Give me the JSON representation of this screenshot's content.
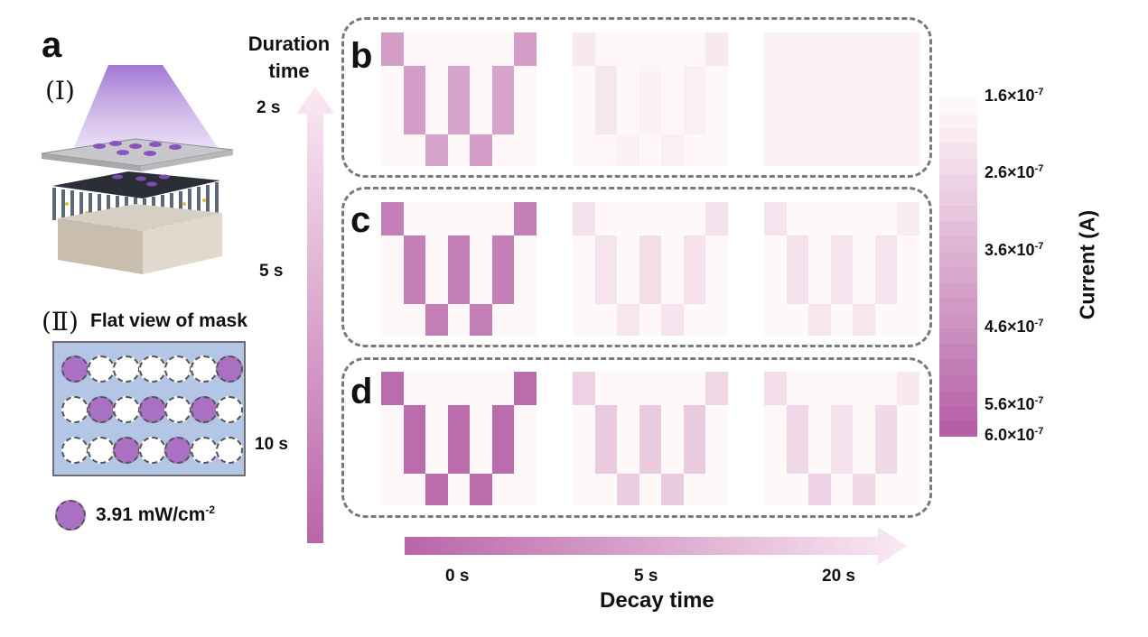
{
  "panel_a": {
    "letter": "a",
    "part1_label": "(Ⅰ)",
    "part2_label": "(Ⅱ)",
    "part2_title": "Flat view of mask",
    "mask_rows": [
      [
        1,
        0,
        0,
        0,
        0,
        0,
        1
      ],
      [
        0,
        1,
        0,
        1,
        0,
        1,
        0
      ],
      [
        0,
        0,
        1,
        0,
        1,
        0,
        0
      ]
    ],
    "legend_value": "3.91 mW/cm",
    "legend_sup": "-2",
    "colors": {
      "mask_bg": "#b4c6e6",
      "lit": "#a970c4",
      "unlit": "#ffffff",
      "light_beam": "#9b6fd0"
    }
  },
  "duration_axis": {
    "title_line1": "Duration",
    "title_line2": "time",
    "ticks": [
      "2 s",
      "5 s",
      "10 s"
    ]
  },
  "decay_axis": {
    "title": "Decay time",
    "ticks": [
      "0 s",
      "5 s",
      "20 s"
    ]
  },
  "rows": [
    {
      "letter": "b",
      "heatmaps": [
        [
          [
            0.6,
            0.0,
            0.0,
            0.0,
            0.0,
            0.0,
            0.6
          ],
          [
            0.0,
            0.6,
            0.0,
            0.55,
            0.0,
            0.55,
            0.0
          ],
          [
            0.0,
            0.0,
            0.55,
            0.0,
            0.6,
            0.0,
            0.0
          ]
        ],
        [
          [
            0.1,
            0.0,
            0.0,
            0.0,
            0.0,
            0.0,
            0.1
          ],
          [
            0.0,
            0.12,
            0.0,
            0.04,
            0.0,
            0.06,
            0.0
          ],
          [
            0.0,
            0.0,
            0.04,
            0.0,
            0.06,
            0.0,
            0.0
          ]
        ],
        [
          [
            0.05,
            0.05,
            0.05,
            0.05,
            0.05,
            0.05,
            0.05
          ],
          [
            0.05,
            0.05,
            0.05,
            0.05,
            0.05,
            0.05,
            0.05
          ],
          [
            0.05,
            0.05,
            0.05,
            0.05,
            0.05,
            0.05,
            0.05
          ]
        ]
      ]
    },
    {
      "letter": "c",
      "heatmaps": [
        [
          [
            0.8,
            0.0,
            0.0,
            0.0,
            0.0,
            0.0,
            0.8
          ],
          [
            0.0,
            0.8,
            0.0,
            0.8,
            0.0,
            0.8,
            0.0
          ],
          [
            0.0,
            0.0,
            0.8,
            0.0,
            0.8,
            0.0,
            0.0
          ]
        ],
        [
          [
            0.15,
            0.0,
            0.0,
            0.0,
            0.0,
            0.0,
            0.15
          ],
          [
            0.0,
            0.14,
            0.0,
            0.18,
            0.0,
            0.15,
            0.0
          ],
          [
            0.0,
            0.0,
            0.12,
            0.0,
            0.14,
            0.0,
            0.0
          ]
        ],
        [
          [
            0.14,
            0.0,
            0.0,
            0.0,
            0.0,
            0.0,
            0.08
          ],
          [
            0.0,
            0.15,
            0.0,
            0.14,
            0.0,
            0.14,
            0.0
          ],
          [
            0.0,
            0.0,
            0.12,
            0.0,
            0.12,
            0.0,
            0.0
          ]
        ]
      ]
    },
    {
      "letter": "d",
      "heatmaps": [
        [
          [
            0.92,
            0.0,
            0.0,
            0.0,
            0.0,
            0.0,
            0.92
          ],
          [
            0.0,
            0.92,
            0.0,
            0.92,
            0.0,
            0.92,
            0.0
          ],
          [
            0.0,
            0.0,
            0.92,
            0.0,
            0.92,
            0.0,
            0.0
          ]
        ],
        [
          [
            0.25,
            0.0,
            0.0,
            0.0,
            0.0,
            0.0,
            0.22
          ],
          [
            0.0,
            0.3,
            0.0,
            0.3,
            0.0,
            0.3,
            0.0
          ],
          [
            0.0,
            0.0,
            0.28,
            0.0,
            0.3,
            0.0,
            0.0
          ]
        ],
        [
          [
            0.18,
            0.0,
            0.0,
            0.0,
            0.0,
            0.0,
            0.1
          ],
          [
            0.0,
            0.22,
            0.0,
            0.15,
            0.0,
            0.2,
            0.0
          ],
          [
            0.0,
            0.0,
            0.25,
            0.0,
            0.2,
            0.0,
            0.0
          ]
        ]
      ]
    }
  ],
  "colorbar": {
    "title": "Current (A)",
    "ticks": [
      {
        "mantissa": "1.6×10",
        "exp": "-7",
        "level": 0.0
      },
      {
        "mantissa": "2.6×10",
        "exp": "-7",
        "level": 0.227
      },
      {
        "mantissa": "3.6×10",
        "exp": "-7",
        "level": 0.455
      },
      {
        "mantissa": "4.6×10",
        "exp": "-7",
        "level": 0.682
      },
      {
        "mantissa": "5.6×10",
        "exp": "-7",
        "level": 0.909
      },
      {
        "mantissa": "6.0×10",
        "exp": "-7",
        "level": 1.0
      }
    ],
    "colors": {
      "low": "#fff8f8",
      "high": "#b560a6"
    },
    "steps": 22
  }
}
